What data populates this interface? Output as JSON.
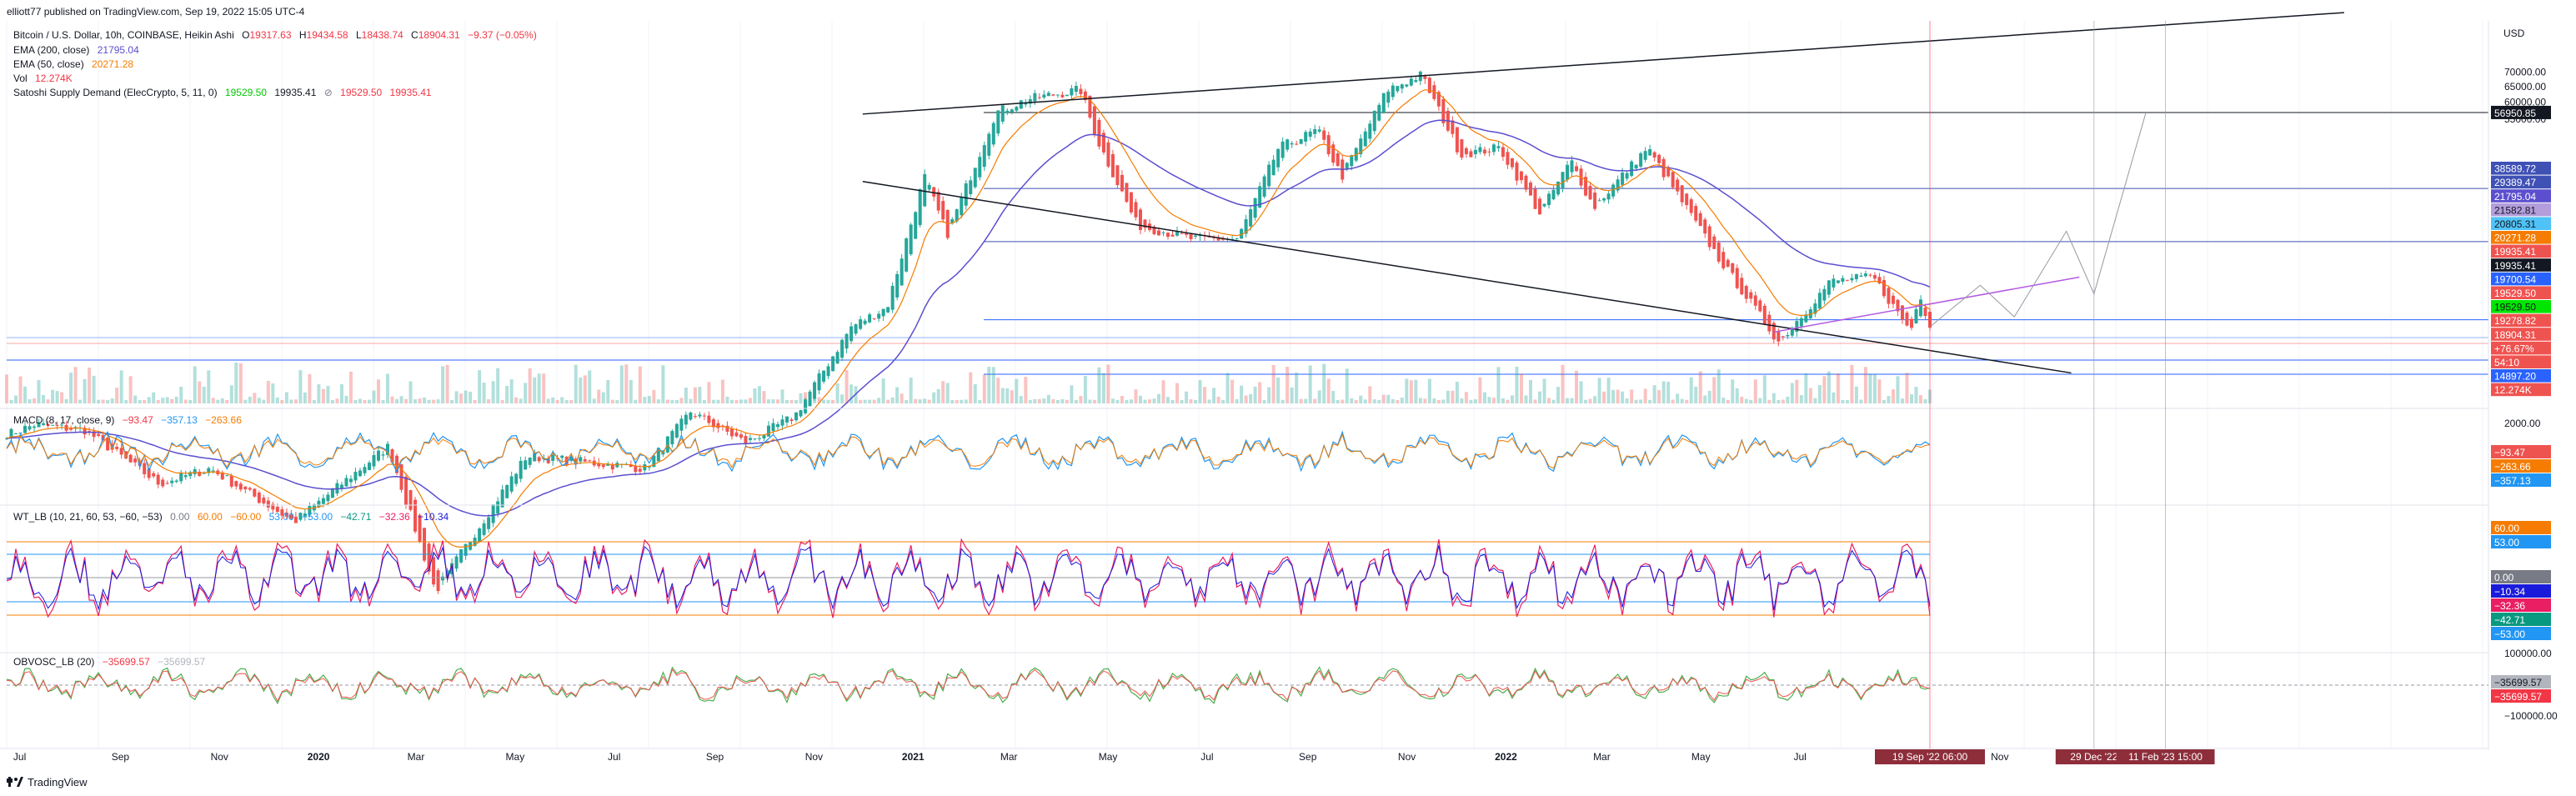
{
  "header": {
    "publisher": "elliott77 published on TradingView.com, Sep 19, 2022 15:05 UTC-4"
  },
  "footer": {
    "logo_text": "TradingView"
  },
  "legend": {
    "symbol": "Bitcoin / U.S. Dollar, 10h, COINBASE, Heikin Ashi",
    "o_label": "O",
    "o": "19317.63",
    "h_label": "H",
    "h": "19434.58",
    "l_label": "L",
    "l": "18438.74",
    "c_label": "C",
    "c": "18904.31",
    "change": "−9.37 (−0.05%)",
    "ema200_label": "EMA (200, close)",
    "ema200": "21795.04",
    "ema50_label": "EMA (50, close)",
    "ema50": "20271.28",
    "vol_label": "Vol",
    "vol": "12.274K",
    "ssd_label": "Satoshi Supply Demand (ElecCrypto, 5, 11, 0)",
    "ssd_v1": "19529.50",
    "ssd_v2": "19935.41",
    "ssd_sym": "⊘",
    "ssd_v3": "19529.50",
    "ssd_v4": "19935.41"
  },
  "macd": {
    "label": "MACD (8, 17, close, 9)",
    "v1": "−93.47",
    "v2": "−357.13",
    "v3": "−263.66"
  },
  "wt": {
    "label": "WT_LB (10, 21, 60, 53, −60, −53)",
    "vals": [
      "0.00",
      "60.00",
      "−60.00",
      "53.00",
      "−53.00",
      "−42.71",
      "−32.36",
      "−10.34"
    ]
  },
  "obv": {
    "label": "OBVOSC_LB (20)",
    "v1": "−35699.57",
    "v2": "−35699.57"
  },
  "colors": {
    "up": "#26a69a",
    "down": "#ef5350",
    "ema200": "#5b4fcf",
    "ema50": "#f57c00",
    "trend": "#131722",
    "hline": "#3f51b5",
    "purple": "#b45be0"
  },
  "chart_data": {
    "type": "candlestick",
    "symbol": "BTCUSD",
    "exchange": "COINBASE",
    "timeframe": "10h",
    "scale": "log",
    "currency": "USD",
    "x_ticks": [
      "Jul",
      "Sep",
      "Nov",
      "2020",
      "Mar",
      "May",
      "Jul",
      "Sep",
      "Nov",
      "2021",
      "Mar",
      "May",
      "Jul",
      "Sep",
      "Nov",
      "2022",
      "Mar",
      "May",
      "Jul",
      "Sep",
      "Nov"
    ],
    "y_ticks_main": [
      "70000.00",
      "65000.00",
      "60000.00",
      "55000.00"
    ],
    "price_path": [
      [
        "2019-06-25",
        11000
      ],
      [
        "2019-07-10",
        11500
      ],
      [
        "2019-08-10",
        11200
      ],
      [
        "2019-09-25",
        8500
      ],
      [
        "2019-10-26",
        9200
      ],
      [
        "2019-12-17",
        7000
      ],
      [
        "2020-02-13",
        10300
      ],
      [
        "2020-03-13",
        4900
      ],
      [
        "2020-05-08",
        9800
      ],
      [
        "2020-07-20",
        9200
      ],
      [
        "2020-08-17",
        12300
      ],
      [
        "2020-09-20",
        10500
      ],
      [
        "2020-10-20",
        12000
      ],
      [
        "2020-11-24",
        19000
      ],
      [
        "2020-12-16",
        21000
      ],
      [
        "2021-01-08",
        41000
      ],
      [
        "2021-01-22",
        30500
      ],
      [
        "2021-02-21",
        57000
      ],
      [
        "2021-03-13",
        61000
      ],
      [
        "2021-04-14",
        64000
      ],
      [
        "2021-04-25",
        49000
      ],
      [
        "2021-05-19",
        32000
      ],
      [
        "2021-06-22",
        29800
      ],
      [
        "2021-07-20",
        29800
      ],
      [
        "2021-08-14",
        47500
      ],
      [
        "2021-09-07",
        52000
      ],
      [
        "2021-09-22",
        41000
      ],
      [
        "2021-10-20",
        64000
      ],
      [
        "2021-11-10",
        69000
      ],
      [
        "2021-12-04",
        46000
      ],
      [
        "2021-12-28",
        47500
      ],
      [
        "2022-01-22",
        34000
      ],
      [
        "2022-02-10",
        44500
      ],
      [
        "2022-02-24",
        35000
      ],
      [
        "2022-03-29",
        47500
      ],
      [
        "2022-05-12",
        27000
      ],
      [
        "2022-06-18",
        17600
      ],
      [
        "2022-07-20",
        24000
      ],
      [
        "2022-08-15",
        24500
      ],
      [
        "2022-09-07",
        18600
      ],
      [
        "2022-09-13",
        22500
      ],
      [
        "2022-09-19",
        18904.31
      ]
    ],
    "price_labels": [
      {
        "value": 56950.85,
        "text": "56950.85",
        "bg": "#131722",
        "fg": "#ffffff"
      },
      {
        "value": 38589.72,
        "text": "38589.72",
        "bg": "#3f51b5",
        "fg": "#ffffff"
      },
      {
        "value": 29389.47,
        "text": "29389.47",
        "bg": "#3f51b5",
        "fg": "#ffffff"
      },
      {
        "value": 21795.04,
        "text": "21795.04",
        "bg": "#5b4fcf",
        "fg": "#ffffff"
      },
      {
        "value": 21582.81,
        "text": "21582.81",
        "bg": "#b39ddb",
        "fg": "#131722"
      },
      {
        "value": 20805.31,
        "text": "20805.31",
        "bg": "#4fc3f7",
        "fg": "#131722"
      },
      {
        "value": 20271.28,
        "text": "20271.28",
        "bg": "#f57c00",
        "fg": "#ffffff"
      },
      {
        "value": 19935.41,
        "text": "19935.41",
        "bg": "#ef5350",
        "fg": "#ffffff"
      },
      {
        "value": 19935.41,
        "text": "19935.41",
        "bg": "#131722",
        "fg": "#ffffff"
      },
      {
        "value": 19700.54,
        "text": "19700.54",
        "bg": "#2962ff",
        "fg": "#ffffff"
      },
      {
        "value": 19529.5,
        "text": "19529.50",
        "bg": "#ef5350",
        "fg": "#ffffff"
      },
      {
        "value": 19529.5,
        "text": "19529.50",
        "bg": "#00e600",
        "fg": "#131722"
      },
      {
        "value": 19278.82,
        "text": "19278.82",
        "bg": "#ef5350",
        "fg": "#ffffff"
      },
      {
        "value": 18904.31,
        "text": "18904.31",
        "bg": "#ef5350",
        "fg": "#ffffff"
      },
      {
        "value": null,
        "text": "+76.67%",
        "bg": "#ef5350",
        "fg": "#ffffff"
      },
      {
        "value": null,
        "text": "54:10",
        "bg": "#ef5350",
        "fg": "#ffffff"
      },
      {
        "value": 14897.2,
        "text": "14897.20",
        "bg": "#2962ff",
        "fg": "#ffffff"
      },
      {
        "value": null,
        "text": "12.274K",
        "bg": "#ef5350",
        "fg": "#ffffff"
      }
    ],
    "macd_ticks": [
      "2000.00"
    ],
    "macd_labels": [
      {
        "text": "−93.47",
        "bg": "#ef5350",
        "fg": "#ffffff"
      },
      {
        "text": "−263.66",
        "bg": "#f57c00",
        "fg": "#ffffff"
      },
      {
        "text": "−357.13",
        "bg": "#2196f3",
        "fg": "#ffffff"
      }
    ],
    "wt_labels": [
      {
        "text": "60.00",
        "bg": "#f57c00",
        "fg": "#ffffff"
      },
      {
        "text": "53.00",
        "bg": "#2196f3",
        "fg": "#ffffff"
      },
      {
        "text": "0.00",
        "bg": "#787b86",
        "fg": "#ffffff"
      },
      {
        "text": "−10.34",
        "bg": "#1a1adb",
        "fg": "#ffffff"
      },
      {
        "text": "−32.36",
        "bg": "#e91e63",
        "fg": "#ffffff"
      },
      {
        "text": "−42.71",
        "bg": "#089981",
        "fg": "#ffffff"
      },
      {
        "text": "−53.00",
        "bg": "#2196f3",
        "fg": "#ffffff"
      }
    ],
    "obv_ticks": [
      "100000.00",
      "−100000.00"
    ],
    "obv_labels": [
      {
        "text": "−35699.57",
        "bg": "#b2b5be",
        "fg": "#131722"
      },
      {
        "text": "−35699.57",
        "bg": "#f23645",
        "fg": "#ffffff"
      }
    ],
    "time_labels": [
      "19 Sep '22   06:00",
      "29 Dec '22",
      "11 Feb '23   15:00"
    ]
  }
}
